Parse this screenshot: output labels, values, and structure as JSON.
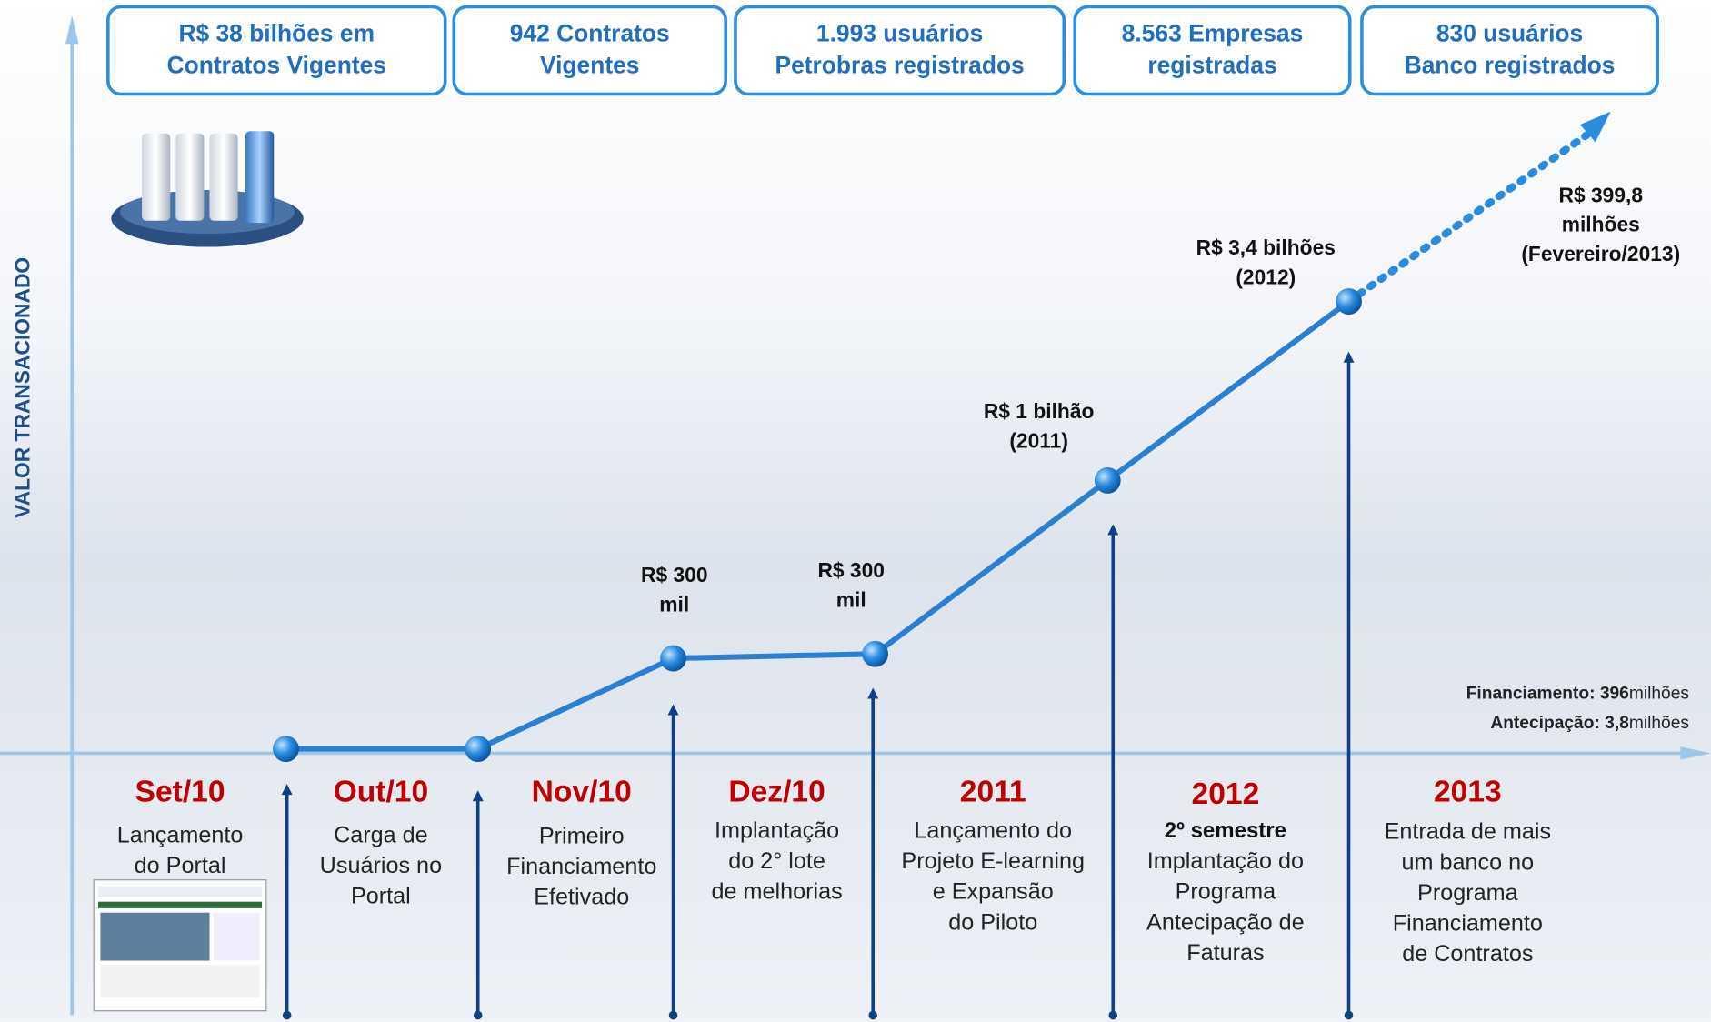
{
  "stats": [
    {
      "lines": [
        "R$ 38 bilhões em",
        "Contratos Vigentes"
      ]
    },
    {
      "lines": [
        "942 Contratos",
        "Vigentes"
      ]
    },
    {
      "lines": [
        "1.993 usuários",
        "Petrobras registrados"
      ]
    },
    {
      "lines": [
        "8.563 Empresas",
        "registradas"
      ]
    },
    {
      "lines": [
        "830 usuários",
        "Banco registrados"
      ]
    }
  ],
  "axis_label": "VALOR TRANSACIONADO",
  "point_labels": [
    {
      "lines": [
        "R$ 300",
        "mil"
      ]
    },
    {
      "lines": [
        "R$ 300",
        "mil"
      ]
    },
    {
      "lines": [
        "R$ 1 bilhão",
        "(2011)"
      ]
    },
    {
      "lines": [
        "R$ 3,4 bilhões",
        "(2012)"
      ]
    },
    {
      "lines": [
        "R$ 399,8",
        "milhões",
        "(Fevereiro/2013)"
      ]
    }
  ],
  "summary": [
    {
      "label": "Financiamento:",
      "value": "396",
      "unit": "milhões"
    },
    {
      "label": "Antecipação:",
      "value": "3,8",
      "unit": "milhões"
    }
  ],
  "periods": [
    {
      "title": "Set/10",
      "lines": [
        "Lançamento",
        "do Portal"
      ]
    },
    {
      "title": "Out/10",
      "lines": [
        "Carga de",
        "Usuários no",
        "Portal"
      ]
    },
    {
      "title": "Nov/10",
      "lines": [
        "Primeiro",
        "Financiamento",
        "Efetivado"
      ]
    },
    {
      "title": "Dez/10",
      "lines": [
        "Implantação",
        "do 2° lote",
        "de melhorias"
      ]
    },
    {
      "title": "2011",
      "lines": [
        "Lançamento do",
        "Projeto E-learning",
        "e Expansão",
        "do Piloto"
      ]
    },
    {
      "title": "2012",
      "subtitle": "2º semestre",
      "lines": [
        "Implantação do",
        "Programa",
        "Antecipação de",
        "Faturas"
      ]
    },
    {
      "title": "2013",
      "lines": [
        "Entrada de mais",
        "um banco no",
        "Programa",
        "Financiamento",
        "de Contratos"
      ]
    }
  ]
}
